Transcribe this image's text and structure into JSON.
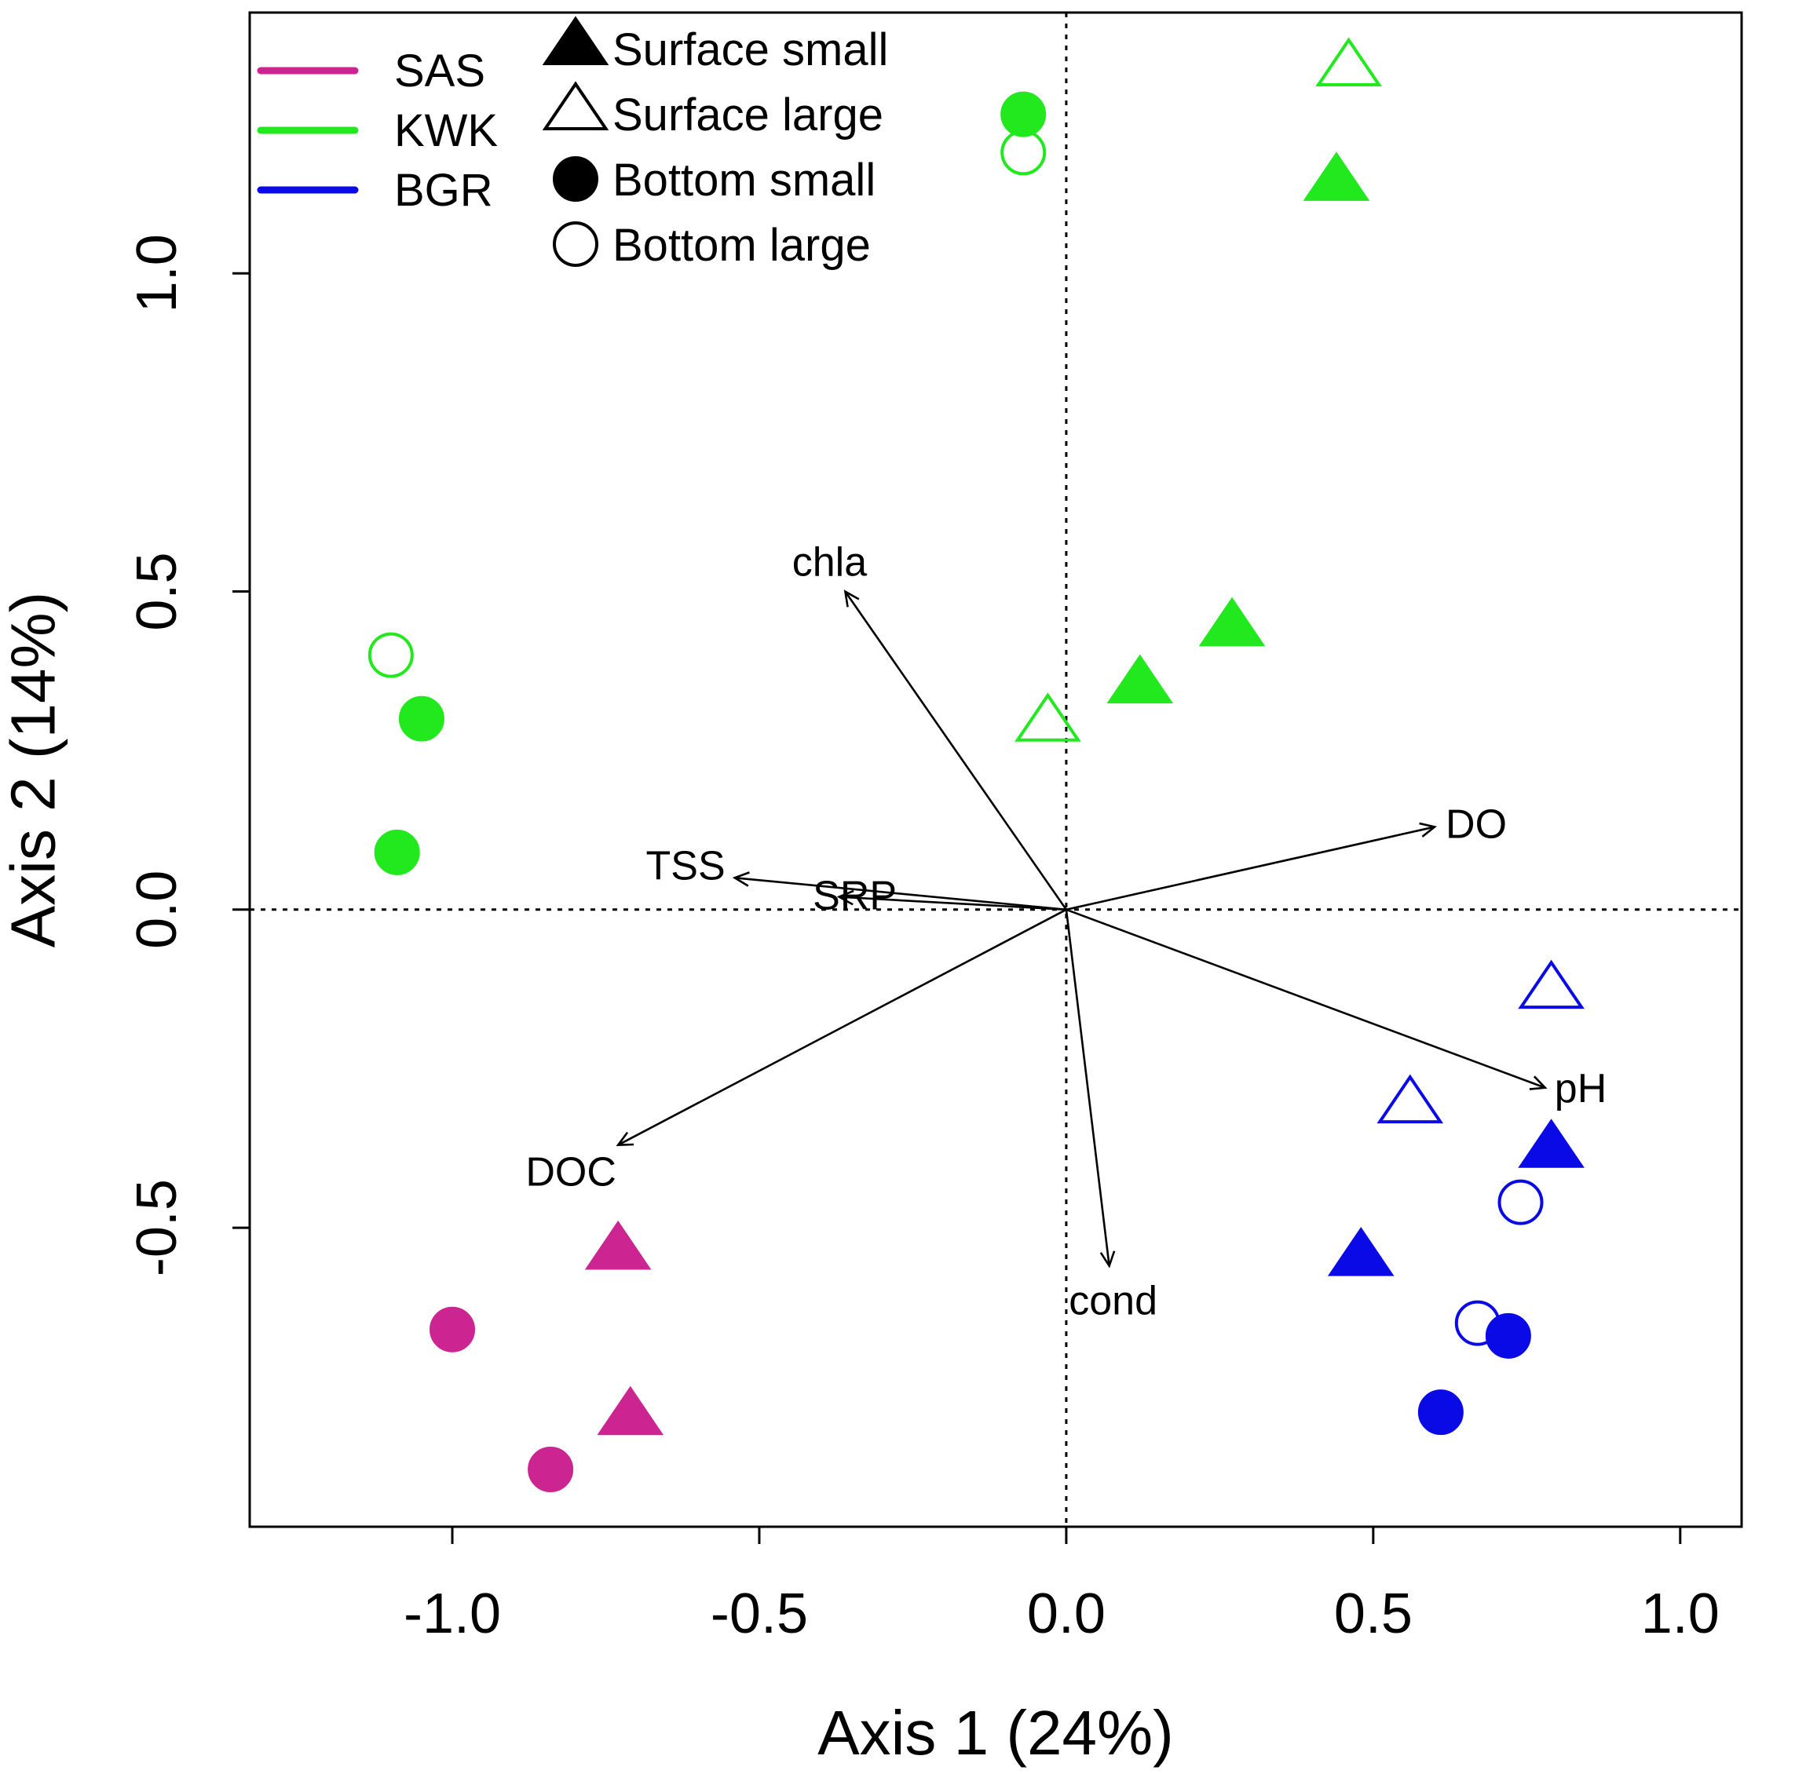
{
  "chart_data": {
    "type": "scatter",
    "title": "",
    "xlabel": "Axis 1 (24%)",
    "ylabel": "Axis 2 (14%)",
    "xlim": [
      -1.33,
      1.1
    ],
    "ylim": [
      -0.97,
      1.41
    ],
    "xticks": [
      -1.0,
      -0.5,
      0.0,
      0.5,
      1.0
    ],
    "xtick_labels": [
      "-1.0",
      "-0.5",
      "0.0",
      "0.5",
      "1.0"
    ],
    "yticks": [
      -0.5,
      0.0,
      0.5,
      1.0
    ],
    "ytick_labels": [
      "-0.5",
      "0.0",
      "0.5",
      "1.0"
    ],
    "reference_lines": {
      "x": 0,
      "y": 0,
      "style": "dotted"
    },
    "grid": false,
    "colors": {
      "SAS": "#cc2490",
      "KWK": "#22e81e",
      "BGR": "#0a0ae6"
    },
    "legend_sites": {
      "placement": "top-left",
      "entries": [
        {
          "label": "SAS",
          "color": "#cc2490"
        },
        {
          "label": "KWK",
          "color": "#22e81e"
        },
        {
          "label": "BGR",
          "color": "#0a0ae6"
        }
      ]
    },
    "legend_types": {
      "placement": "top-left",
      "entries": [
        {
          "label": "Surface small",
          "shape": "triangle",
          "filled": true
        },
        {
          "label": "Surface large",
          "shape": "triangle",
          "filled": false
        },
        {
          "label": "Bottom small",
          "shape": "circle",
          "filled": true
        },
        {
          "label": "Bottom large",
          "shape": "circle",
          "filled": false
        }
      ]
    },
    "vectors": [
      {
        "label": "chla",
        "x": -0.36,
        "y": 0.5
      },
      {
        "label": "DO",
        "x": 0.6,
        "y": 0.13
      },
      {
        "label": "TSS",
        "x": -0.54,
        "y": 0.05
      },
      {
        "label": "SRP",
        "x": -0.37,
        "y": 0.02
      },
      {
        "label": "pH",
        "x": 0.78,
        "y": -0.28
      },
      {
        "label": "DOC",
        "x": -0.73,
        "y": -0.37
      },
      {
        "label": "cond",
        "x": 0.07,
        "y": -0.56
      }
    ],
    "series": [
      {
        "name": "SAS",
        "points": [
          {
            "type": "Surface small",
            "x": -0.73,
            "y": -0.54
          },
          {
            "type": "Surface small",
            "x": -0.71,
            "y": -0.8
          },
          {
            "type": "Bottom small",
            "x": -1.0,
            "y": -0.66
          },
          {
            "type": "Bottom small",
            "x": -0.84,
            "y": -0.88
          }
        ]
      },
      {
        "name": "KWK",
        "points": [
          {
            "type": "Surface large",
            "x": 0.46,
            "y": 1.32
          },
          {
            "type": "Surface small",
            "x": 0.44,
            "y": 1.14
          },
          {
            "type": "Surface small",
            "x": 0.27,
            "y": 0.44
          },
          {
            "type": "Surface small",
            "x": 0.12,
            "y": 0.35
          },
          {
            "type": "Surface large",
            "x": -0.03,
            "y": 0.29
          },
          {
            "type": "Bottom small",
            "x": -0.07,
            "y": 1.25
          },
          {
            "type": "Bottom large",
            "x": -0.07,
            "y": 1.19
          },
          {
            "type": "Bottom large",
            "x": -1.1,
            "y": 0.4
          },
          {
            "type": "Bottom small",
            "x": -1.05,
            "y": 0.3
          },
          {
            "type": "Bottom small",
            "x": -1.09,
            "y": 0.09
          }
        ]
      },
      {
        "name": "BGR",
        "points": [
          {
            "type": "Surface large",
            "x": 0.79,
            "y": -0.13
          },
          {
            "type": "Surface large",
            "x": 0.56,
            "y": -0.31
          },
          {
            "type": "Surface small",
            "x": 0.79,
            "y": -0.38
          },
          {
            "type": "Surface small",
            "x": 0.48,
            "y": -0.55
          },
          {
            "type": "Bottom large",
            "x": 0.74,
            "y": -0.46
          },
          {
            "type": "Bottom large",
            "x": 0.67,
            "y": -0.65
          },
          {
            "type": "Bottom small",
            "x": 0.72,
            "y": -0.67
          },
          {
            "type": "Bottom small",
            "x": 0.61,
            "y": -0.79
          }
        ]
      }
    ]
  }
}
